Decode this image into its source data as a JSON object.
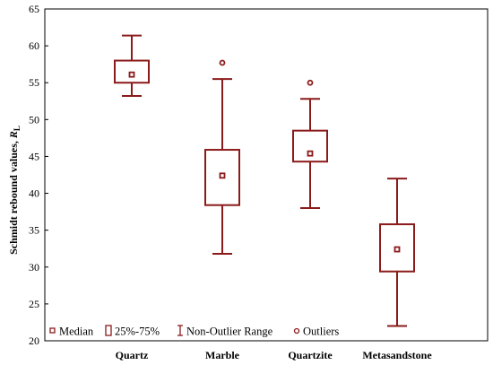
{
  "chart_data": {
    "type": "boxplot",
    "ylabel": "Schmidt rebound values, ",
    "ylabel_symbol": "R",
    "ylabel_subscript": "L",
    "ylim": [
      20,
      65
    ],
    "yticks": [
      20,
      25,
      30,
      35,
      40,
      45,
      50,
      55,
      60,
      65
    ],
    "color": "#8b1a1a",
    "categories": [
      "Quartz",
      "Marble",
      "Quartzite",
      "Metasandstone"
    ],
    "boxes": [
      {
        "category": "Quartz",
        "median": 56.1,
        "q1": 55.0,
        "q3": 58.0,
        "whisker_low": 53.2,
        "whisker_high": 61.4,
        "outliers": []
      },
      {
        "category": "Marble",
        "median": 42.4,
        "q1": 38.4,
        "q3": 45.9,
        "whisker_low": 31.8,
        "whisker_high": 55.5,
        "outliers": [
          57.7
        ]
      },
      {
        "category": "Quartzite",
        "median": 45.4,
        "q1": 44.3,
        "q3": 48.5,
        "whisker_low": 38.0,
        "whisker_high": 52.8,
        "outliers": [
          55.0
        ]
      },
      {
        "category": "Metasandstone",
        "median": 32.4,
        "q1": 29.4,
        "q3": 35.8,
        "whisker_low": 22.0,
        "whisker_high": 42.0,
        "outliers": []
      }
    ],
    "legend": {
      "placement": "bottom-left",
      "items": [
        {
          "label": "Median",
          "symbol": "small-square"
        },
        {
          "label": "25%-75%",
          "symbol": "box"
        },
        {
          "label": "Non-Outlier Range",
          "symbol": "whisker"
        },
        {
          "label": "Outliers",
          "symbol": "circle"
        }
      ]
    },
    "grid": false
  }
}
